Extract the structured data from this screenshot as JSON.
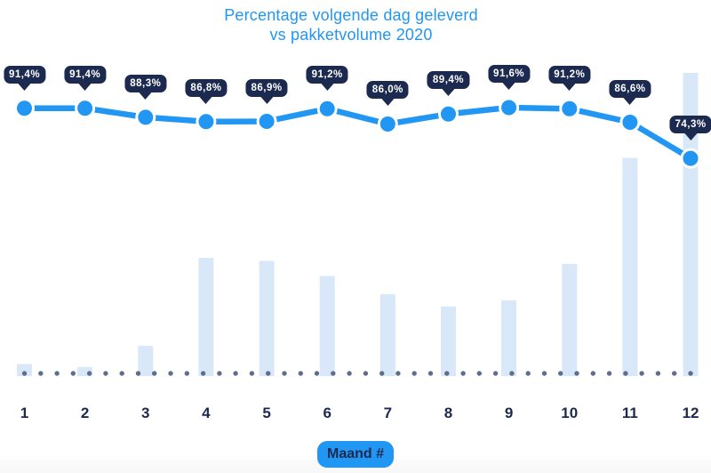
{
  "title": {
    "line1": "Percentage volgende dag geleverd",
    "line2": "vs pakketvolume 2020"
  },
  "x_axis": {
    "label": "Maand #",
    "ticks": [
      "1",
      "2",
      "3",
      "4",
      "5",
      "6",
      "7",
      "8",
      "9",
      "10",
      "11",
      "12"
    ]
  },
  "colors": {
    "accent_blue": "#2196F3",
    "navy": "#1D2A50",
    "bar_fill": "#D9E8F8",
    "baseline_dot": "#5E6E90",
    "tooltip_text": "#FFFFFF",
    "background": "#FFFFFF"
  },
  "chart_data": {
    "type": "combo",
    "title": "Percentage volgende dag geleverd vs pakketvolume 2020",
    "xlabel": "Maand #",
    "categories": [
      1,
      2,
      3,
      4,
      5,
      6,
      7,
      8,
      9,
      10,
      11,
      12
    ],
    "series": [
      {
        "name": "Percentage volgende dag geleverd",
        "type": "line",
        "unit": "%",
        "values": [
          91.4,
          91.4,
          88.3,
          86.8,
          86.9,
          91.2,
          86.0,
          89.4,
          91.6,
          91.2,
          86.6,
          74.3
        ],
        "labels": [
          "91,4%",
          "91,4%",
          "88,3%",
          "86,8%",
          "86,9%",
          "91,2%",
          "86,0%",
          "89,4%",
          "91,6%",
          "91,2%",
          "86,6%",
          "74,3%"
        ]
      },
      {
        "name": "Pakketvolume 2020",
        "type": "bar",
        "unit": "relative index (max = 100)",
        "values": [
          4,
          3,
          10,
          39,
          38,
          33,
          27,
          23,
          25,
          37,
          72,
          100
        ]
      }
    ],
    "y_axis": "hidden",
    "gridlines": "none",
    "legend": "none",
    "baseline_style": "dotted"
  }
}
